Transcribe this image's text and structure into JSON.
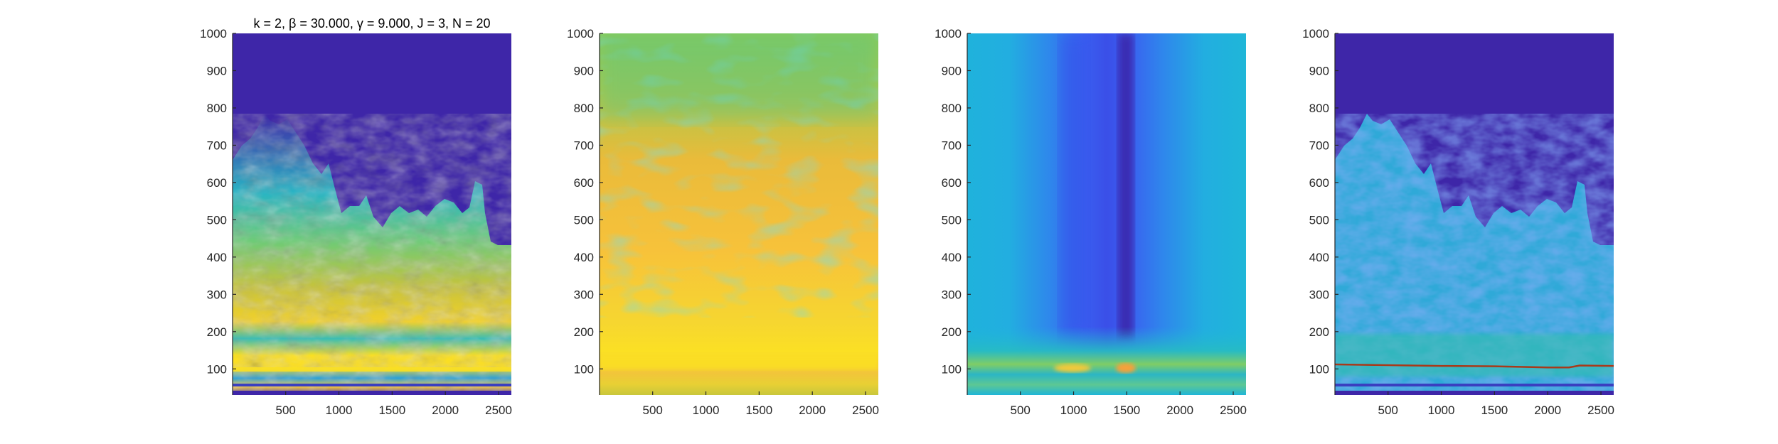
{
  "chart_data": [
    {
      "type": "heatmap",
      "title": "k = 2, β = 30.000, γ = 9.000, J = 3, N = 20",
      "xlim": [
        1,
        2620
      ],
      "ylim": [
        30,
        1000
      ],
      "x_ticks": [
        500,
        1000,
        1500,
        2000,
        2500
      ],
      "y_ticks": [
        100,
        200,
        300,
        400,
        500,
        600,
        700,
        800,
        900,
        1000
      ],
      "colormap": "parula",
      "background_color": "#3e26a8"
    },
    {
      "type": "heatmap",
      "title": "",
      "xlim": [
        1,
        2620
      ],
      "ylim": [
        30,
        1000
      ],
      "x_ticks": [
        500,
        1000,
        1500,
        2000,
        2500
      ],
      "y_ticks": [
        100,
        200,
        300,
        400,
        500,
        600,
        700,
        800,
        900,
        1000
      ],
      "colormap": "parula"
    },
    {
      "type": "heatmap",
      "title": "",
      "xlim": [
        1,
        2620
      ],
      "ylim": [
        30,
        1000
      ],
      "x_ticks": [
        500,
        1000,
        1500,
        2000,
        2500
      ],
      "y_ticks": [
        100,
        200,
        300,
        400,
        500,
        600,
        700,
        800,
        900,
        1000
      ],
      "colormap": "parula",
      "dark_band_center_x": 1500,
      "bright_band_y": 100
    },
    {
      "type": "heatmap",
      "title": "",
      "xlim": [
        1,
        2620
      ],
      "ylim": [
        30,
        1000
      ],
      "x_ticks": [
        500,
        1000,
        1500,
        2000,
        2500
      ],
      "y_ticks": [
        100,
        200,
        300,
        400,
        500,
        600,
        700,
        800,
        900,
        1000
      ],
      "colormap": "parula",
      "background_color": "#3e26a8",
      "ridge_line": {
        "color": "#a83a1a",
        "x": [
          1,
          500,
          1000,
          1500,
          2000,
          2200,
          2300,
          2620
        ],
        "y": [
          112,
          110,
          108,
          107,
          104,
          104,
          109,
          108
        ]
      }
    }
  ]
}
